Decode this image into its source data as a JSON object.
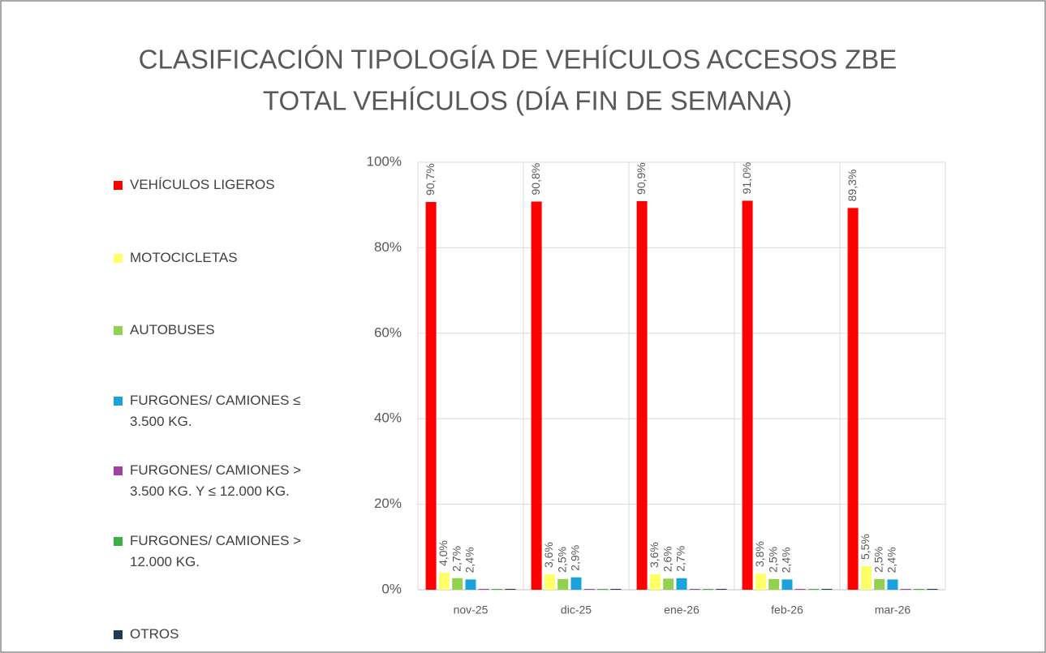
{
  "chart_data": {
    "type": "bar",
    "title": [
      "CLASIFICACIÓN TIPOLOGÍA DE VEHÍCULOS  ACCESOS ZBE",
      "TOTAL VEHÍCULOS (DÍA FIN DE SEMANA)"
    ],
    "categories": [
      "nov-25",
      "dic-25",
      "ene-26",
      "feb-26",
      "mar-26"
    ],
    "series": [
      {
        "name": "VEHÍCULOS LIGEROS",
        "color": "#ff0000",
        "values": [
          90.7,
          90.8,
          90.9,
          91.0,
          89.3
        ],
        "value_labels": [
          "90,7%",
          "90,8%",
          "90,9%",
          "91,0%",
          "89,3%"
        ]
      },
      {
        "name": "MOTOCICLETAS",
        "color": "#ffff66",
        "values": [
          4.0,
          3.6,
          3.6,
          3.8,
          5.5
        ],
        "value_labels": [
          "4,0%",
          "3,6%",
          "3,6%",
          "3,8%",
          "5,5%"
        ]
      },
      {
        "name": "AUTOBUSES",
        "color": "#92d050",
        "values": [
          2.7,
          2.5,
          2.6,
          2.5,
          2.5
        ],
        "value_labels": [
          "2,7%",
          "2,5%",
          "2,6%",
          "2,5%",
          "2,5%"
        ]
      },
      {
        "name": "FURGONES/ CAMIONES ≤ 3.500 KG.",
        "color": "#1ba1dc",
        "values": [
          2.4,
          2.9,
          2.7,
          2.4,
          2.4
        ],
        "value_labels": [
          "2,4%",
          "2,9%",
          "2,7%",
          "2,4%",
          "2,4%"
        ]
      },
      {
        "name": "FURGONES/ CAMIONES > 3.500 KG. Y ≤ 12.000 KG.",
        "color": "#a040a0",
        "values": [
          0.2,
          0.2,
          0.2,
          0.2,
          0.2
        ],
        "value_labels": [
          null,
          null,
          null,
          null,
          null
        ]
      },
      {
        "name": "FURGONES/ CAMIONES > 12.000 KG.",
        "color": "#3cb043",
        "values": [
          0.2,
          0.2,
          0.2,
          0.2,
          0.2
        ],
        "value_labels": [
          null,
          null,
          null,
          null,
          null
        ]
      },
      {
        "name": "OTROS",
        "color": "#1f3b55",
        "values": [
          0.2,
          0.2,
          0.2,
          0.2,
          0.2
        ],
        "value_labels": [
          null,
          null,
          null,
          null,
          null
        ]
      }
    ],
    "ylim": [
      0,
      100
    ],
    "yticks": [
      {
        "value": 0,
        "label": "0%"
      },
      {
        "value": 20,
        "label": "20%"
      },
      {
        "value": 40,
        "label": "40%"
      },
      {
        "value": 60,
        "label": "60%"
      },
      {
        "value": 80,
        "label": "80%"
      },
      {
        "value": 100,
        "label": "100%"
      }
    ],
    "grid": true,
    "legend": "left"
  }
}
